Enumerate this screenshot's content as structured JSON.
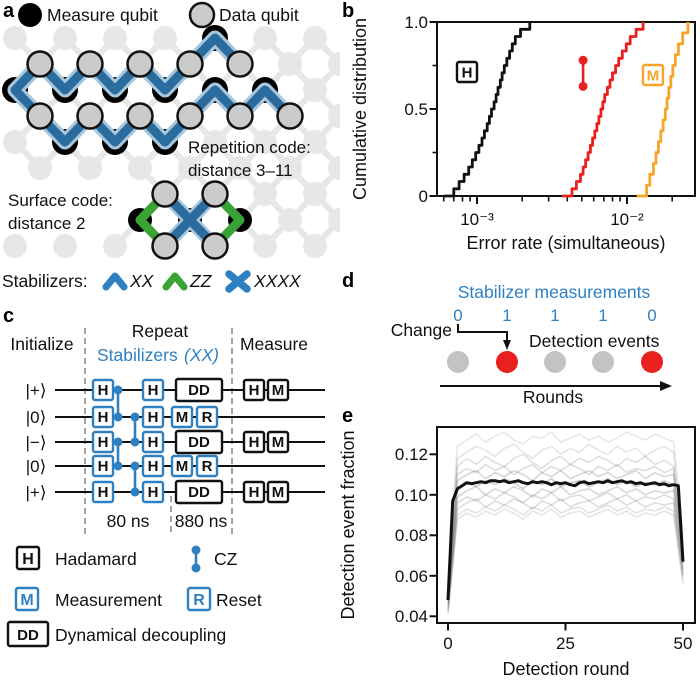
{
  "colors": {
    "blue": "#2f80c0",
    "blue_dark": "#2b6c9e",
    "blue_light": "#a8c7dd",
    "green": "#3aa336",
    "red": "#e8201e",
    "orange": "#f7a428",
    "qubit_gray": "#cbcbcb",
    "lattice_gray": "#e7e7e7",
    "black": "#111111"
  },
  "panels": {
    "a": "a",
    "b": "b",
    "c": "c",
    "d": "d",
    "e": "e"
  },
  "panel_a": {
    "legend": {
      "measure": "Measure qubit",
      "data": "Data qubit"
    },
    "repetition_1": "Repetition code:",
    "repetition_2": "distance 3–11",
    "surface_1": "Surface code:",
    "surface_2": "distance 2",
    "stabilizers_label": "Stabilizers:",
    "xx": "XX",
    "zz": "ZZ",
    "xxxx": "XXXX"
  },
  "panel_c": {
    "sections": {
      "initialize": "Initialize",
      "repeat": "Repeat",
      "stabilizers": "Stabilizers ",
      "stabilizers_paren": "(XX)",
      "measure": "Measure"
    },
    "qubits": [
      "|+⟩",
      "|0⟩",
      "|−⟩",
      "|0⟩",
      "|+⟩"
    ],
    "gates": {
      "h": "H",
      "m": "M",
      "r": "R",
      "dd": "DD"
    },
    "timings": {
      "t80": "80 ns",
      "t880": "880 ns"
    },
    "legend": {
      "h": "Hadamard",
      "cz": "CZ",
      "m": "Measurement",
      "r": "Reset",
      "dd": "Dynamical decoupling"
    }
  },
  "panel_d": {
    "title": "Stabilizer measurements",
    "values": [
      "0",
      "1",
      "1",
      "1",
      "0"
    ],
    "change_label": "Change",
    "events_label": "Detection events",
    "rounds_label": "Rounds",
    "dot_fills": [
      "#c3c3c3",
      "#e8201e",
      "#c3c3c3",
      "#c3c3c3",
      "#e8201e"
    ]
  },
  "chart_data": [
    {
      "panel": "b",
      "type": "line",
      "subtype": "cdf_steps",
      "xlabel": "Error rate (simultaneous)",
      "ylabel": "Cumulative distribution",
      "xscale": "log",
      "xlim": [
        0.00054,
        0.0285
      ],
      "ylim": [
        0,
        1
      ],
      "xticks": [
        0.001,
        0.01
      ],
      "xtick_labels": [
        "10⁻³",
        "10⁻²"
      ],
      "yticks": [
        1.0,
        0.5,
        0
      ],
      "ytick_labels": [
        "1.0",
        "0.5",
        "0"
      ],
      "minor_xticks": [
        0.0006,
        0.0007,
        0.0008,
        0.0009,
        0.002,
        0.003,
        0.004,
        0.005,
        0.006,
        0.007,
        0.008,
        0.009,
        0.02
      ],
      "minor_yticks": [
        0.25,
        0.75
      ],
      "series": [
        {
          "name": "H",
          "color": "#111111",
          "values": [
            0.0007,
            0.00076,
            0.00082,
            0.00088,
            0.00093,
            0.00098,
            0.00103,
            0.00108,
            0.00112,
            0.00117,
            0.00121,
            0.00125,
            0.0013,
            0.00134,
            0.00138,
            0.00143,
            0.00147,
            0.00152,
            0.00158,
            0.00165,
            0.00172,
            0.0018,
            0.00195,
            0.00225
          ]
        },
        {
          "name": "CZ",
          "color": "#e8201e",
          "values": [
            0.0043,
            0.0046,
            0.0049,
            0.0051,
            0.0053,
            0.0055,
            0.0057,
            0.0059,
            0.0061,
            0.0063,
            0.0065,
            0.0067,
            0.0069,
            0.0071,
            0.0074,
            0.0077,
            0.008,
            0.0084,
            0.0088,
            0.0093,
            0.0099,
            0.0105,
            0.0115,
            0.0128
          ]
        },
        {
          "name": "M",
          "color": "#f7a428",
          "values": [
            0.0135,
            0.0142,
            0.015,
            0.0156,
            0.0162,
            0.0168,
            0.0174,
            0.018,
            0.0185,
            0.019,
            0.0196,
            0.0202,
            0.021,
            0.022,
            0.0235,
            0.0255
          ]
        }
      ],
      "cz_marker": {
        "x": 0.0051,
        "y_low": 0.63,
        "y_high": 0.78
      }
    },
    {
      "panel": "e",
      "type": "line",
      "xlabel": "Detection round",
      "ylabel": "Detection event fraction",
      "xlim": [
        -2.3,
        52.5
      ],
      "ylim": [
        0.0375,
        0.1335
      ],
      "xticks": [
        0,
        25,
        50
      ],
      "xtick_labels": [
        "0",
        "25",
        "50"
      ],
      "yticks": [
        0.12,
        0.1,
        0.08,
        0.06,
        0.04
      ],
      "ytick_labels": [
        "0.12",
        "0.10",
        "0.08",
        "0.06",
        "0.04"
      ],
      "mean_series": {
        "name": "mean",
        "color": "#111111",
        "x_step": 1,
        "values": [
          0.048,
          0.097,
          0.103,
          0.1045,
          0.106,
          0.1055,
          0.106,
          0.1065,
          0.106,
          0.107,
          0.107,
          0.1065,
          0.107,
          0.106,
          0.1065,
          0.107,
          0.106,
          0.1055,
          0.1065,
          0.106,
          0.1065,
          0.106,
          0.105,
          0.106,
          0.1055,
          0.106,
          0.105,
          0.1045,
          0.106,
          0.1065,
          0.1055,
          0.106,
          0.1065,
          0.106,
          0.107,
          0.106,
          0.1065,
          0.107,
          0.106,
          0.1065,
          0.1055,
          0.106,
          0.105,
          0.1055,
          0.106,
          0.105,
          0.1055,
          0.1045,
          0.105,
          0.1045,
          0.067
        ]
      },
      "individual_series": {
        "color": "#111111",
        "x_step": 2,
        "opacities": [
          0.1,
          0.11,
          0.13,
          0.14,
          0.17,
          0.2,
          0.17,
          0.15,
          0.14,
          0.12,
          0.11
        ],
        "lines": [
          [
            0.058,
            0.124,
            0.127,
            0.13,
            0.126,
            0.129,
            0.131,
            0.127,
            0.125,
            0.129,
            0.128,
            0.131,
            0.126,
            0.128,
            0.13,
            0.127,
            0.129,
            0.126,
            0.128,
            0.131,
            0.129,
            0.127,
            0.13,
            0.128,
            0.126,
            0.08
          ],
          [
            0.055,
            0.118,
            0.121,
            0.124,
            0.122,
            0.119,
            0.123,
            0.125,
            0.121,
            0.118,
            0.122,
            0.124,
            0.12,
            0.123,
            0.121,
            0.125,
            0.122,
            0.12,
            0.124,
            0.121,
            0.123,
            0.119,
            0.122,
            0.124,
            0.121,
            0.076
          ],
          [
            0.053,
            0.114,
            0.118,
            0.115,
            0.119,
            0.116,
            0.114,
            0.118,
            0.12,
            0.116,
            0.113,
            0.117,
            0.119,
            0.115,
            0.118,
            0.116,
            0.119,
            0.117,
            0.114,
            0.118,
            0.116,
            0.119,
            0.115,
            0.117,
            0.114,
            0.073
          ],
          [
            0.051,
            0.11,
            0.113,
            0.111,
            0.115,
            0.112,
            0.114,
            0.11,
            0.113,
            0.115,
            0.111,
            0.114,
            0.112,
            0.115,
            0.113,
            0.11,
            0.114,
            0.112,
            0.115,
            0.111,
            0.113,
            0.112,
            0.114,
            0.111,
            0.113,
            0.07
          ],
          [
            0.049,
            0.107,
            0.11,
            0.112,
            0.108,
            0.111,
            0.109,
            0.112,
            0.11,
            0.107,
            0.111,
            0.109,
            0.112,
            0.108,
            0.11,
            0.112,
            0.109,
            0.111,
            0.108,
            0.11,
            0.112,
            0.108,
            0.111,
            0.109,
            0.11,
            0.068
          ],
          [
            0.048,
            0.103,
            0.106,
            0.104,
            0.107,
            0.105,
            0.108,
            0.106,
            0.103,
            0.107,
            0.105,
            0.108,
            0.104,
            0.106,
            0.107,
            0.104,
            0.106,
            0.108,
            0.105,
            0.107,
            0.104,
            0.106,
            0.105,
            0.107,
            0.105,
            0.066
          ],
          [
            0.046,
            0.099,
            0.102,
            0.104,
            0.1,
            0.103,
            0.101,
            0.104,
            0.102,
            0.099,
            0.103,
            0.101,
            0.104,
            0.1,
            0.102,
            0.103,
            0.1,
            0.102,
            0.104,
            0.101,
            0.103,
            0.1,
            0.102,
            0.101,
            0.102,
            0.063
          ],
          [
            0.045,
            0.096,
            0.099,
            0.097,
            0.1,
            0.098,
            0.101,
            0.099,
            0.096,
            0.1,
            0.098,
            0.101,
            0.097,
            0.099,
            0.1,
            0.097,
            0.099,
            0.101,
            0.098,
            0.1,
            0.097,
            0.099,
            0.098,
            0.1,
            0.098,
            0.061
          ],
          [
            0.043,
            0.093,
            0.096,
            0.098,
            0.094,
            0.097,
            0.095,
            0.098,
            0.096,
            0.093,
            0.097,
            0.095,
            0.098,
            0.094,
            0.096,
            0.097,
            0.094,
            0.096,
            0.098,
            0.095,
            0.097,
            0.094,
            0.096,
            0.095,
            0.096,
            0.06
          ],
          [
            0.042,
            0.09,
            0.093,
            0.091,
            0.094,
            0.092,
            0.095,
            0.093,
            0.09,
            0.094,
            0.092,
            0.095,
            0.091,
            0.093,
            0.094,
            0.091,
            0.093,
            0.095,
            0.092,
            0.094,
            0.091,
            0.093,
            0.092,
            0.094,
            0.092,
            0.058
          ],
          [
            0.041,
            0.088,
            0.091,
            0.089,
            0.092,
            0.09,
            0.093,
            0.091,
            0.088,
            0.092,
            0.09,
            0.093,
            0.089,
            0.091,
            0.092,
            0.089,
            0.091,
            0.093,
            0.09,
            0.092,
            0.089,
            0.091,
            0.09,
            0.092,
            0.09,
            0.056
          ]
        ]
      }
    }
  ]
}
